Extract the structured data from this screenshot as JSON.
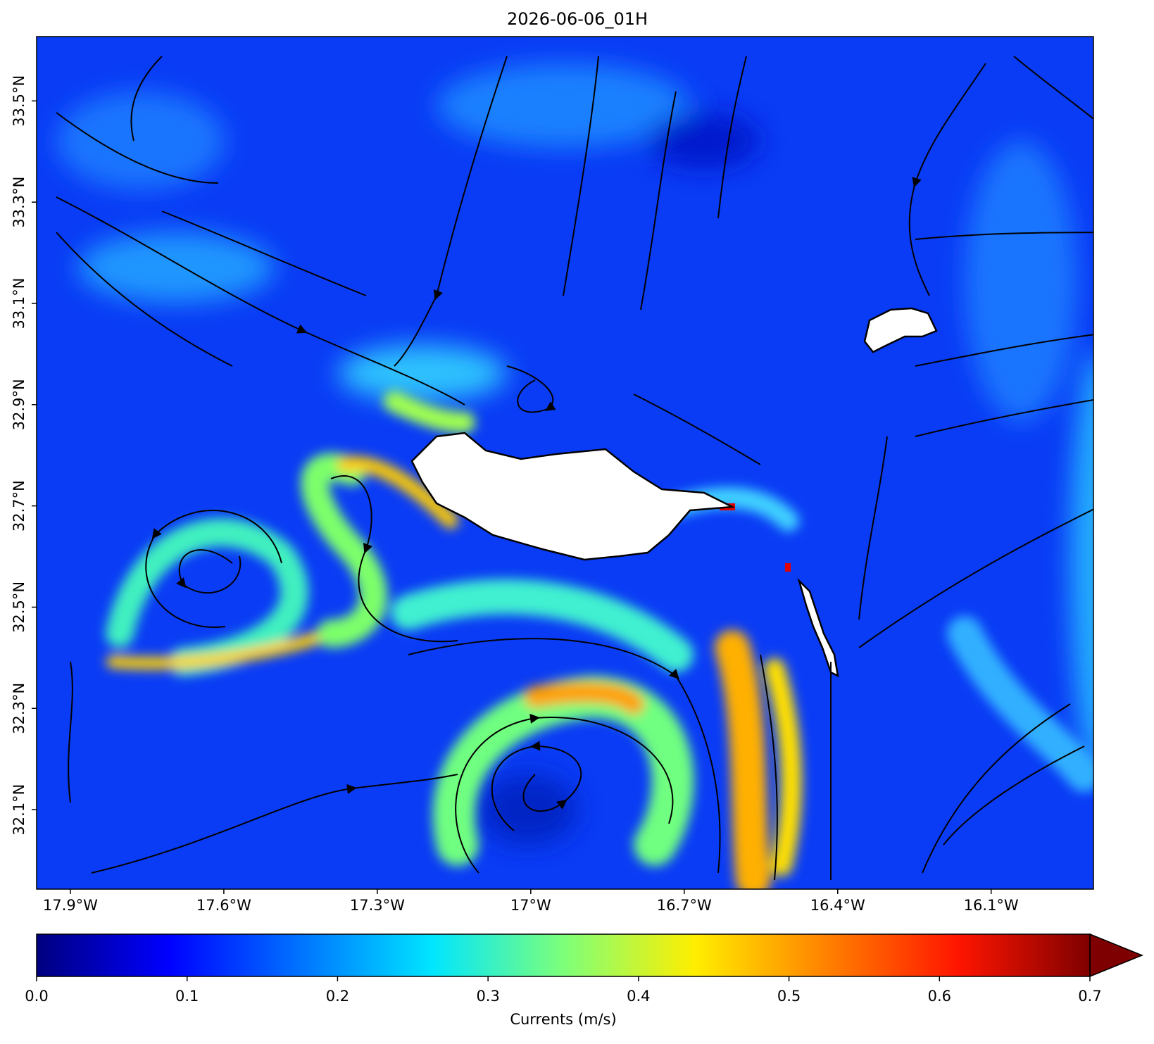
{
  "title": "2026-06-06_01H",
  "map": {
    "xlim": [
      -17.966,
      -15.9
    ],
    "ylim": [
      31.943,
      33.627
    ],
    "xticks": [
      {
        "value": -17.9,
        "label": "17.9°W"
      },
      {
        "value": -17.6,
        "label": "17.6°W"
      },
      {
        "value": -17.3,
        "label": "17.3°W"
      },
      {
        "value": -17.0,
        "label": "17°W"
      },
      {
        "value": -16.7,
        "label": "16.7°W"
      },
      {
        "value": -16.4,
        "label": "16.4°W"
      },
      {
        "value": -16.1,
        "label": "16.1°W"
      }
    ],
    "yticks": [
      {
        "value": 33.5,
        "label": "33.5°N"
      },
      {
        "value": 33.3,
        "label": "33.3°N"
      },
      {
        "value": 33.1,
        "label": "33.1°N"
      },
      {
        "value": 32.9,
        "label": "32.9°N"
      },
      {
        "value": 32.7,
        "label": "32.7°N"
      },
      {
        "value": 32.5,
        "label": "32.5°N"
      },
      {
        "value": 32.3,
        "label": "32.3°N"
      },
      {
        "value": 32.1,
        "label": "32.1°N"
      }
    ]
  },
  "colorbar": {
    "label": "Currents (m/s)",
    "vlim": [
      0,
      0.7
    ],
    "ticks": [
      {
        "value": 0,
        "label": "0.0"
      },
      {
        "value": 0.1,
        "label": "0.1"
      },
      {
        "value": 0.2,
        "label": "0.2"
      },
      {
        "value": 0.3,
        "label": "0.3"
      },
      {
        "value": 0.4,
        "label": "0.4"
      },
      {
        "value": 0.5,
        "label": "0.5"
      },
      {
        "value": 0.6,
        "label": "0.6"
      },
      {
        "value": 0.7,
        "label": "0.7"
      }
    ]
  }
}
